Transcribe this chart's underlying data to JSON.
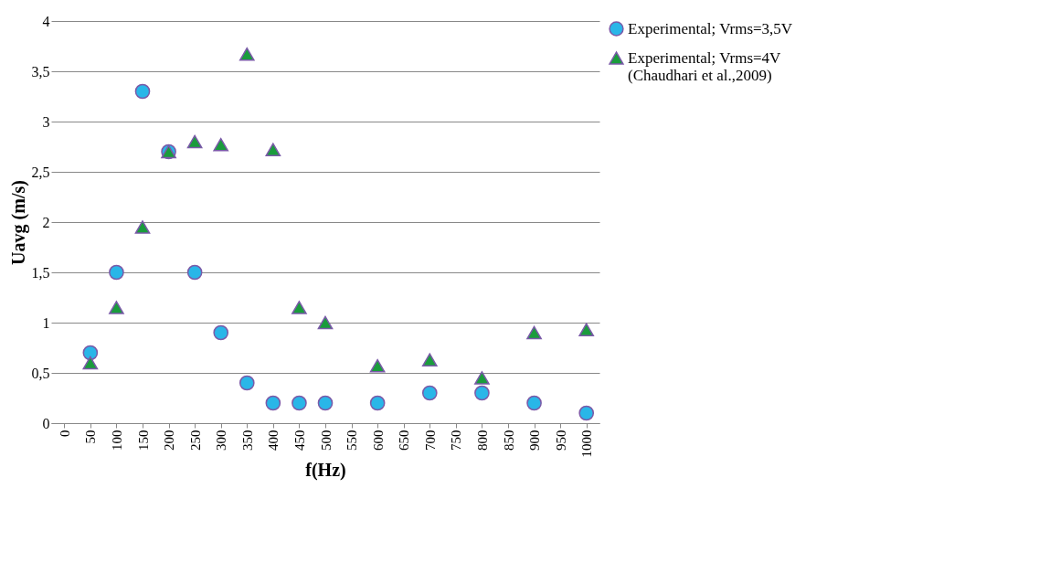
{
  "chart_data": {
    "type": "scatter",
    "xlabel": "f(Hz)",
    "ylabel": "Uavg (m/s)",
    "categories": [
      "0",
      "50",
      "100",
      "150",
      "200",
      "250",
      "300",
      "350",
      "400",
      "450",
      "500",
      "550",
      "600",
      "650",
      "700",
      "750",
      "800",
      "850",
      "900",
      "950",
      "1000"
    ],
    "series": [
      {
        "name": "Experimental; Vrms=3,5V",
        "color": "#29b6e8",
        "marker": "circle",
        "values": [
          null,
          0.7,
          1.5,
          3.3,
          2.7,
          1.5,
          0.9,
          0.4,
          0.2,
          0.2,
          0.2,
          null,
          0.2,
          null,
          0.3,
          null,
          0.3,
          null,
          0.2,
          null,
          0.1
        ]
      },
      {
        "name": "Experimental; Vrms=4V\n(Chaudhari et al.,2009)",
        "color": "#1a9c3c",
        "marker": "triangle",
        "values": [
          null,
          0.6,
          1.15,
          1.95,
          2.7,
          2.8,
          2.77,
          3.67,
          2.72,
          1.15,
          1.0,
          null,
          0.57,
          null,
          0.63,
          null,
          0.45,
          null,
          0.9,
          null,
          0.93
        ]
      }
    ],
    "ylim": [
      0,
      4
    ],
    "yticks": [
      0,
      {
        "value": 0.5,
        "label": "0,5"
      },
      1,
      {
        "value": 1.5,
        "label": "1,5"
      },
      2,
      {
        "value": 2.5,
        "label": "2,5"
      },
      3,
      {
        "value": 3.5,
        "label": "3,5"
      },
      4
    ],
    "grid": "y",
    "legend": "right"
  }
}
